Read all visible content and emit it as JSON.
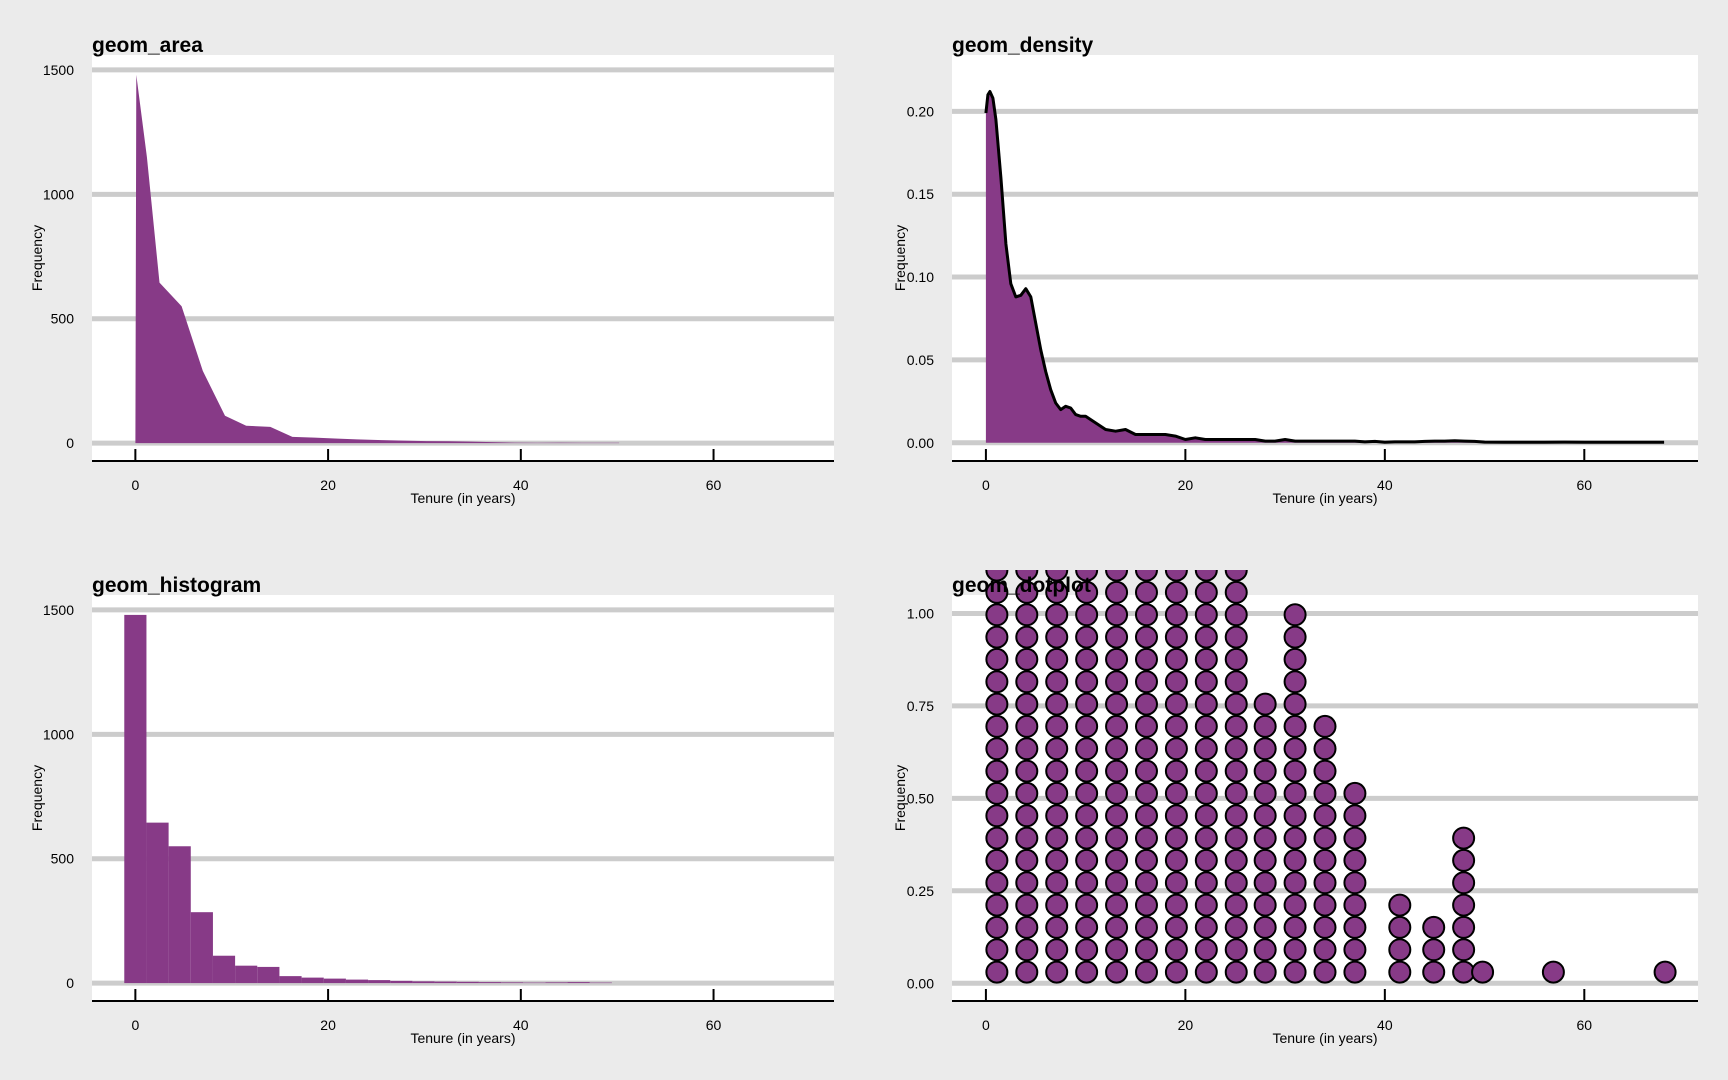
{
  "colors": {
    "background": "#ebebeb",
    "panel": "#ffffff",
    "grid": "#cccccc",
    "fill": "#873a87",
    "outline": "#000000"
  },
  "chart_data": [
    {
      "type": "area",
      "title": "geom_area",
      "xlabel": "Tenure (in years)",
      "ylabel": "Frequency",
      "xlim": [
        -4.5,
        72.5
      ],
      "ylim": [
        -72,
        1560
      ],
      "xticks": [
        0,
        20,
        40,
        60
      ],
      "yticks": [
        0,
        500,
        1000,
        1500
      ],
      "x": [
        0,
        0.1,
        1.2,
        2.5,
        4.8,
        7,
        9.3,
        11.5,
        14,
        16.3,
        18.6,
        21,
        23,
        25.6,
        27.9,
        30.2,
        32.5,
        34.7,
        37,
        39.4,
        41.7,
        44,
        46.3,
        48.6,
        50.2,
        50.2
      ],
      "values": [
        0,
        1480,
        1150,
        645,
        550,
        290,
        110,
        70,
        65,
        25,
        22,
        18,
        15,
        12,
        10,
        8,
        7,
        6,
        4,
        2,
        1,
        2,
        1,
        1,
        1,
        0
      ]
    },
    {
      "type": "density",
      "title": "geom_density",
      "xlabel": "Tenure (in years)",
      "ylabel": "Frequency",
      "xlim": [
        -3.4,
        71.4
      ],
      "ylim": [
        -0.011,
        0.234
      ],
      "xticks": [
        0,
        20,
        40,
        60
      ],
      "yticks": [
        0.0,
        0.05,
        0.1,
        0.15,
        0.2
      ],
      "ytick_labels": [
        "0.00",
        "0.05",
        "0.10",
        "0.15",
        "0.20"
      ],
      "x": [
        0,
        0.2,
        0.4,
        0.7,
        1,
        1.5,
        2,
        2.5,
        3,
        3.5,
        4,
        4.5,
        5,
        5.5,
        6,
        6.5,
        7,
        7.5,
        8,
        8.5,
        9,
        9.5,
        10,
        11,
        12,
        13,
        14,
        15,
        16,
        17,
        18,
        19,
        20,
        21,
        22,
        23,
        24,
        25,
        26,
        27,
        28,
        29,
        30,
        31,
        32,
        33,
        34,
        35,
        36,
        37,
        38,
        39,
        40,
        41,
        42,
        43,
        44,
        45,
        46,
        47,
        48,
        49,
        50,
        52,
        54,
        56,
        58,
        60,
        62,
        64,
        66,
        68
      ],
      "values": [
        0.199,
        0.21,
        0.212,
        0.208,
        0.195,
        0.16,
        0.12,
        0.096,
        0.088,
        0.089,
        0.093,
        0.088,
        0.072,
        0.056,
        0.043,
        0.032,
        0.024,
        0.02,
        0.022,
        0.021,
        0.017,
        0.016,
        0.016,
        0.012,
        0.008,
        0.007,
        0.008,
        0.005,
        0.005,
        0.005,
        0.005,
        0.004,
        0.002,
        0.003,
        0.002,
        0.002,
        0.002,
        0.002,
        0.002,
        0.002,
        0.001,
        0.001,
        0.002,
        0.001,
        0.001,
        0.001,
        0.001,
        0.001,
        0.001,
        0.001,
        0.0005,
        0.0008,
        0.0003,
        0.0005,
        0.0005,
        0.0005,
        0.0008,
        0.001,
        0.001,
        0.0012,
        0.001,
        0.0008,
        0.0004,
        0.0003,
        0.0003,
        0.0003,
        0.0004,
        0.0003,
        0.0003,
        0.0003,
        0.0003,
        0.0003
      ]
    },
    {
      "type": "bar",
      "title": "geom_histogram",
      "xlabel": "Tenure (in years)",
      "ylabel": "Frequency",
      "xlim": [
        -4.5,
        72.5
      ],
      "ylim": [
        -72,
        1560
      ],
      "xticks": [
        0,
        20,
        40,
        60
      ],
      "yticks": [
        0,
        500,
        1000,
        1500
      ],
      "bin_width": 2.3,
      "bin_centers": [
        0,
        2.3,
        4.6,
        6.9,
        9.2,
        11.5,
        13.8,
        16.1,
        18.4,
        20.7,
        23,
        25.3,
        27.6,
        29.9,
        32.2,
        34.5,
        36.8,
        39.1,
        41.4,
        43.7,
        46,
        48.3
      ],
      "values": [
        1480,
        645,
        550,
        285,
        110,
        70,
        65,
        28,
        22,
        18,
        14,
        12,
        9,
        7,
        6,
        5,
        4,
        3,
        2,
        3,
        4,
        2
      ]
    },
    {
      "type": "dotplot",
      "title": "geom_dotplot",
      "xlabel": "Tenure (in years)",
      "ylabel": "Frequency",
      "xlim": [
        -3.4,
        71.4
      ],
      "ylim": [
        -0.048,
        1.05
      ],
      "xticks": [
        0,
        20,
        40,
        60
      ],
      "yticks": [
        0.0,
        0.25,
        0.5,
        0.75,
        1.0
      ],
      "ytick_labels": [
        "0.00",
        "0.25",
        "0.50",
        "0.75",
        "1.00"
      ],
      "dot_step": 0.0604,
      "stacks_x": [
        1.1,
        4.1,
        7.1,
        10.1,
        13.1,
        16.1,
        19.1,
        22.1,
        25.1,
        28,
        31,
        34,
        37,
        41.5,
        44.9,
        47.9,
        49.8,
        56.9,
        68.1
      ],
      "stacks_count": [
        30,
        30,
        30,
        30,
        30,
        30,
        30,
        30,
        30,
        13,
        17,
        12,
        9,
        4,
        3,
        7,
        1,
        1,
        1
      ]
    }
  ]
}
